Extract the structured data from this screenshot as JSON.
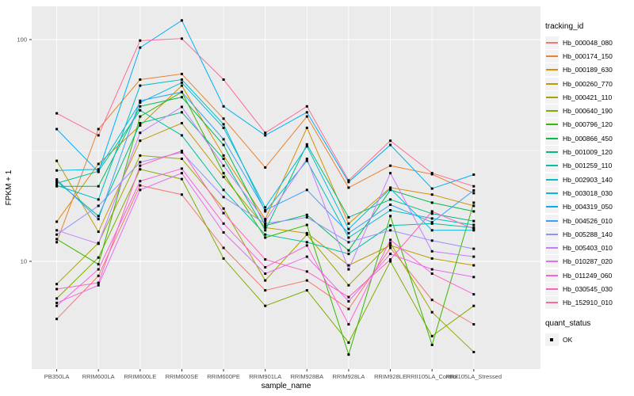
{
  "chart_data": {
    "type": "line",
    "title": "",
    "xlabel": "sample_name",
    "ylabel": "FPKM + 1",
    "y_scale": "log10",
    "y_ticks": [
      100,
      10
    ],
    "y_minor_ticks": [
      31.6
    ],
    "ylim": [
      3.3,
      141
    ],
    "grid": true,
    "legend_position": "right",
    "point_shape": "filled-square",
    "point_color": "#000000",
    "x_categories": [
      "PB350LA",
      "RRIM600LA",
      "RRIM600LE",
      "RRIM600SE",
      "RRIM600PE",
      "RRIM901LA",
      "RRIM928BA",
      "RRIM928LA",
      "RRIM928LE",
      "RRII105LA_Control",
      "RRII105LA_Stressed"
    ],
    "series": [
      {
        "name": "Hb_000048_080",
        "color": "#F8766D",
        "values": [
          5.5,
          8.6,
          22,
          20,
          11.5,
          7.4,
          8.2,
          6.1,
          11.5,
          6.7,
          5.2
        ]
      },
      {
        "name": "Hb_000174_150",
        "color": "#EA8331",
        "values": [
          12.2,
          39.5,
          66,
          70,
          44,
          26.5,
          45,
          21.5,
          27,
          24.7,
          20.3
        ]
      },
      {
        "name": "Hb_000189_630",
        "color": "#D89000",
        "values": [
          15.1,
          27.5,
          41,
          62,
          30,
          15.5,
          40,
          14.8,
          21.5,
          20,
          17.8
        ]
      },
      {
        "name": "Hb_000260_770",
        "color": "#C09B00",
        "values": [
          28.4,
          13.6,
          35,
          42,
          24,
          14.2,
          13.4,
          9.6,
          11.8,
          10.3,
          9.6
        ]
      },
      {
        "name": "Hb_000421_110",
        "color": "#A3A500",
        "values": [
          7.9,
          12.1,
          30,
          29,
          17.3,
          8.2,
          13.2,
          7.8,
          12.1,
          5.9,
          3.9
        ]
      },
      {
        "name": "Hb_000640_190",
        "color": "#7CAE00",
        "values": [
          6.8,
          10.4,
          26,
          23.5,
          10.3,
          6.3,
          7.4,
          4.3,
          10,
          4.6,
          6.3
        ]
      },
      {
        "name": "Hb_000796_120",
        "color": "#39B600",
        "values": [
          12.6,
          9.7,
          45,
          58,
          25,
          12.8,
          14.6,
          3.8,
          16,
          4.2,
          18.4
        ]
      },
      {
        "name": "Hb_000866_450",
        "color": "#00BB4E",
        "values": [
          21.8,
          21.8,
          50,
          55,
          33.5,
          14.5,
          16.2,
          11.2,
          21,
          18.4,
          16.8
        ]
      },
      {
        "name": "Hb_001009_120",
        "color": "#00BF7D",
        "values": [
          23,
          16,
          42,
          47,
          29,
          13.8,
          33.7,
          15.8,
          19,
          16.4,
          15.2
        ]
      },
      {
        "name": "Hb_001259_110",
        "color": "#00C1A3",
        "values": [
          22.5,
          25.5,
          48,
          37,
          21,
          13.2,
          12.2,
          10.8,
          14.5,
          14.8,
          14.2
        ]
      },
      {
        "name": "Hb_002903_140",
        "color": "#00BFC4",
        "values": [
          22,
          19,
          62,
          66,
          41.5,
          16.8,
          28.4,
          12.8,
          17,
          15.6,
          14.6
        ]
      },
      {
        "name": "Hb_003018_030",
        "color": "#00BAE0",
        "values": [
          25.7,
          26,
          52,
          64,
          40,
          17.5,
          33,
          14,
          21.3,
          13.8,
          13.8
        ]
      },
      {
        "name": "Hb_004319_050",
        "color": "#00B0F6",
        "values": [
          39.5,
          25.3,
          92,
          122,
          50,
          37,
          47,
          22.8,
          33.5,
          21.3,
          24.6
        ]
      },
      {
        "name": "Hb_004526_010",
        "color": "#35A2FF",
        "values": [
          23.4,
          15.5,
          53,
          58,
          35.5,
          17,
          21,
          13.4,
          18,
          15,
          20.9
        ]
      },
      {
        "name": "Hb_005288_140",
        "color": "#9590FF",
        "values": [
          13.2,
          17.8,
          28,
          31,
          19.5,
          14.8,
          15.8,
          12.2,
          13.8,
          12.4,
          11.4
        ]
      },
      {
        "name": "Hb_005403_010",
        "color": "#C77CFF",
        "values": [
          13.8,
          12,
          38,
          49.7,
          27,
          15.2,
          29,
          9.2,
          25,
          11.1,
          10.5
        ]
      },
      {
        "name": "Hb_010287_020",
        "color": "#E76BF3",
        "values": [
          6.5,
          7.8,
          21,
          25,
          13.5,
          8.8,
          10.5,
          6.6,
          10.8,
          9.2,
          8.5
        ]
      },
      {
        "name": "Hb_011249_060",
        "color": "#FA62DB",
        "values": [
          6.3,
          9.2,
          23,
          26.2,
          14.8,
          9.4,
          11.8,
          5.2,
          12.5,
          8.8,
          7.1
        ]
      },
      {
        "name": "Hb_030545_030",
        "color": "#FF62BC",
        "values": [
          7.5,
          8,
          27,
          31.5,
          16.5,
          10.2,
          9,
          6.9,
          10.2,
          16.8,
          14
        ]
      },
      {
        "name": "Hb_152910_010",
        "color": "#FF6A98",
        "values": [
          46.5,
          37,
          99,
          101,
          66,
          38,
          50,
          23.2,
          35,
          25,
          21.8
        ]
      }
    ],
    "legend": {
      "tracking_title": "tracking_id",
      "quant_title": "quant_status",
      "quant_items": [
        "OK"
      ]
    },
    "colors": {
      "panel_background": "#EBEBEB",
      "gridline": "#FFFFFF",
      "tick_label": "#4D4D4D",
      "axis_title": "#000000",
      "legend_key_background": "#F2F2F2"
    }
  }
}
